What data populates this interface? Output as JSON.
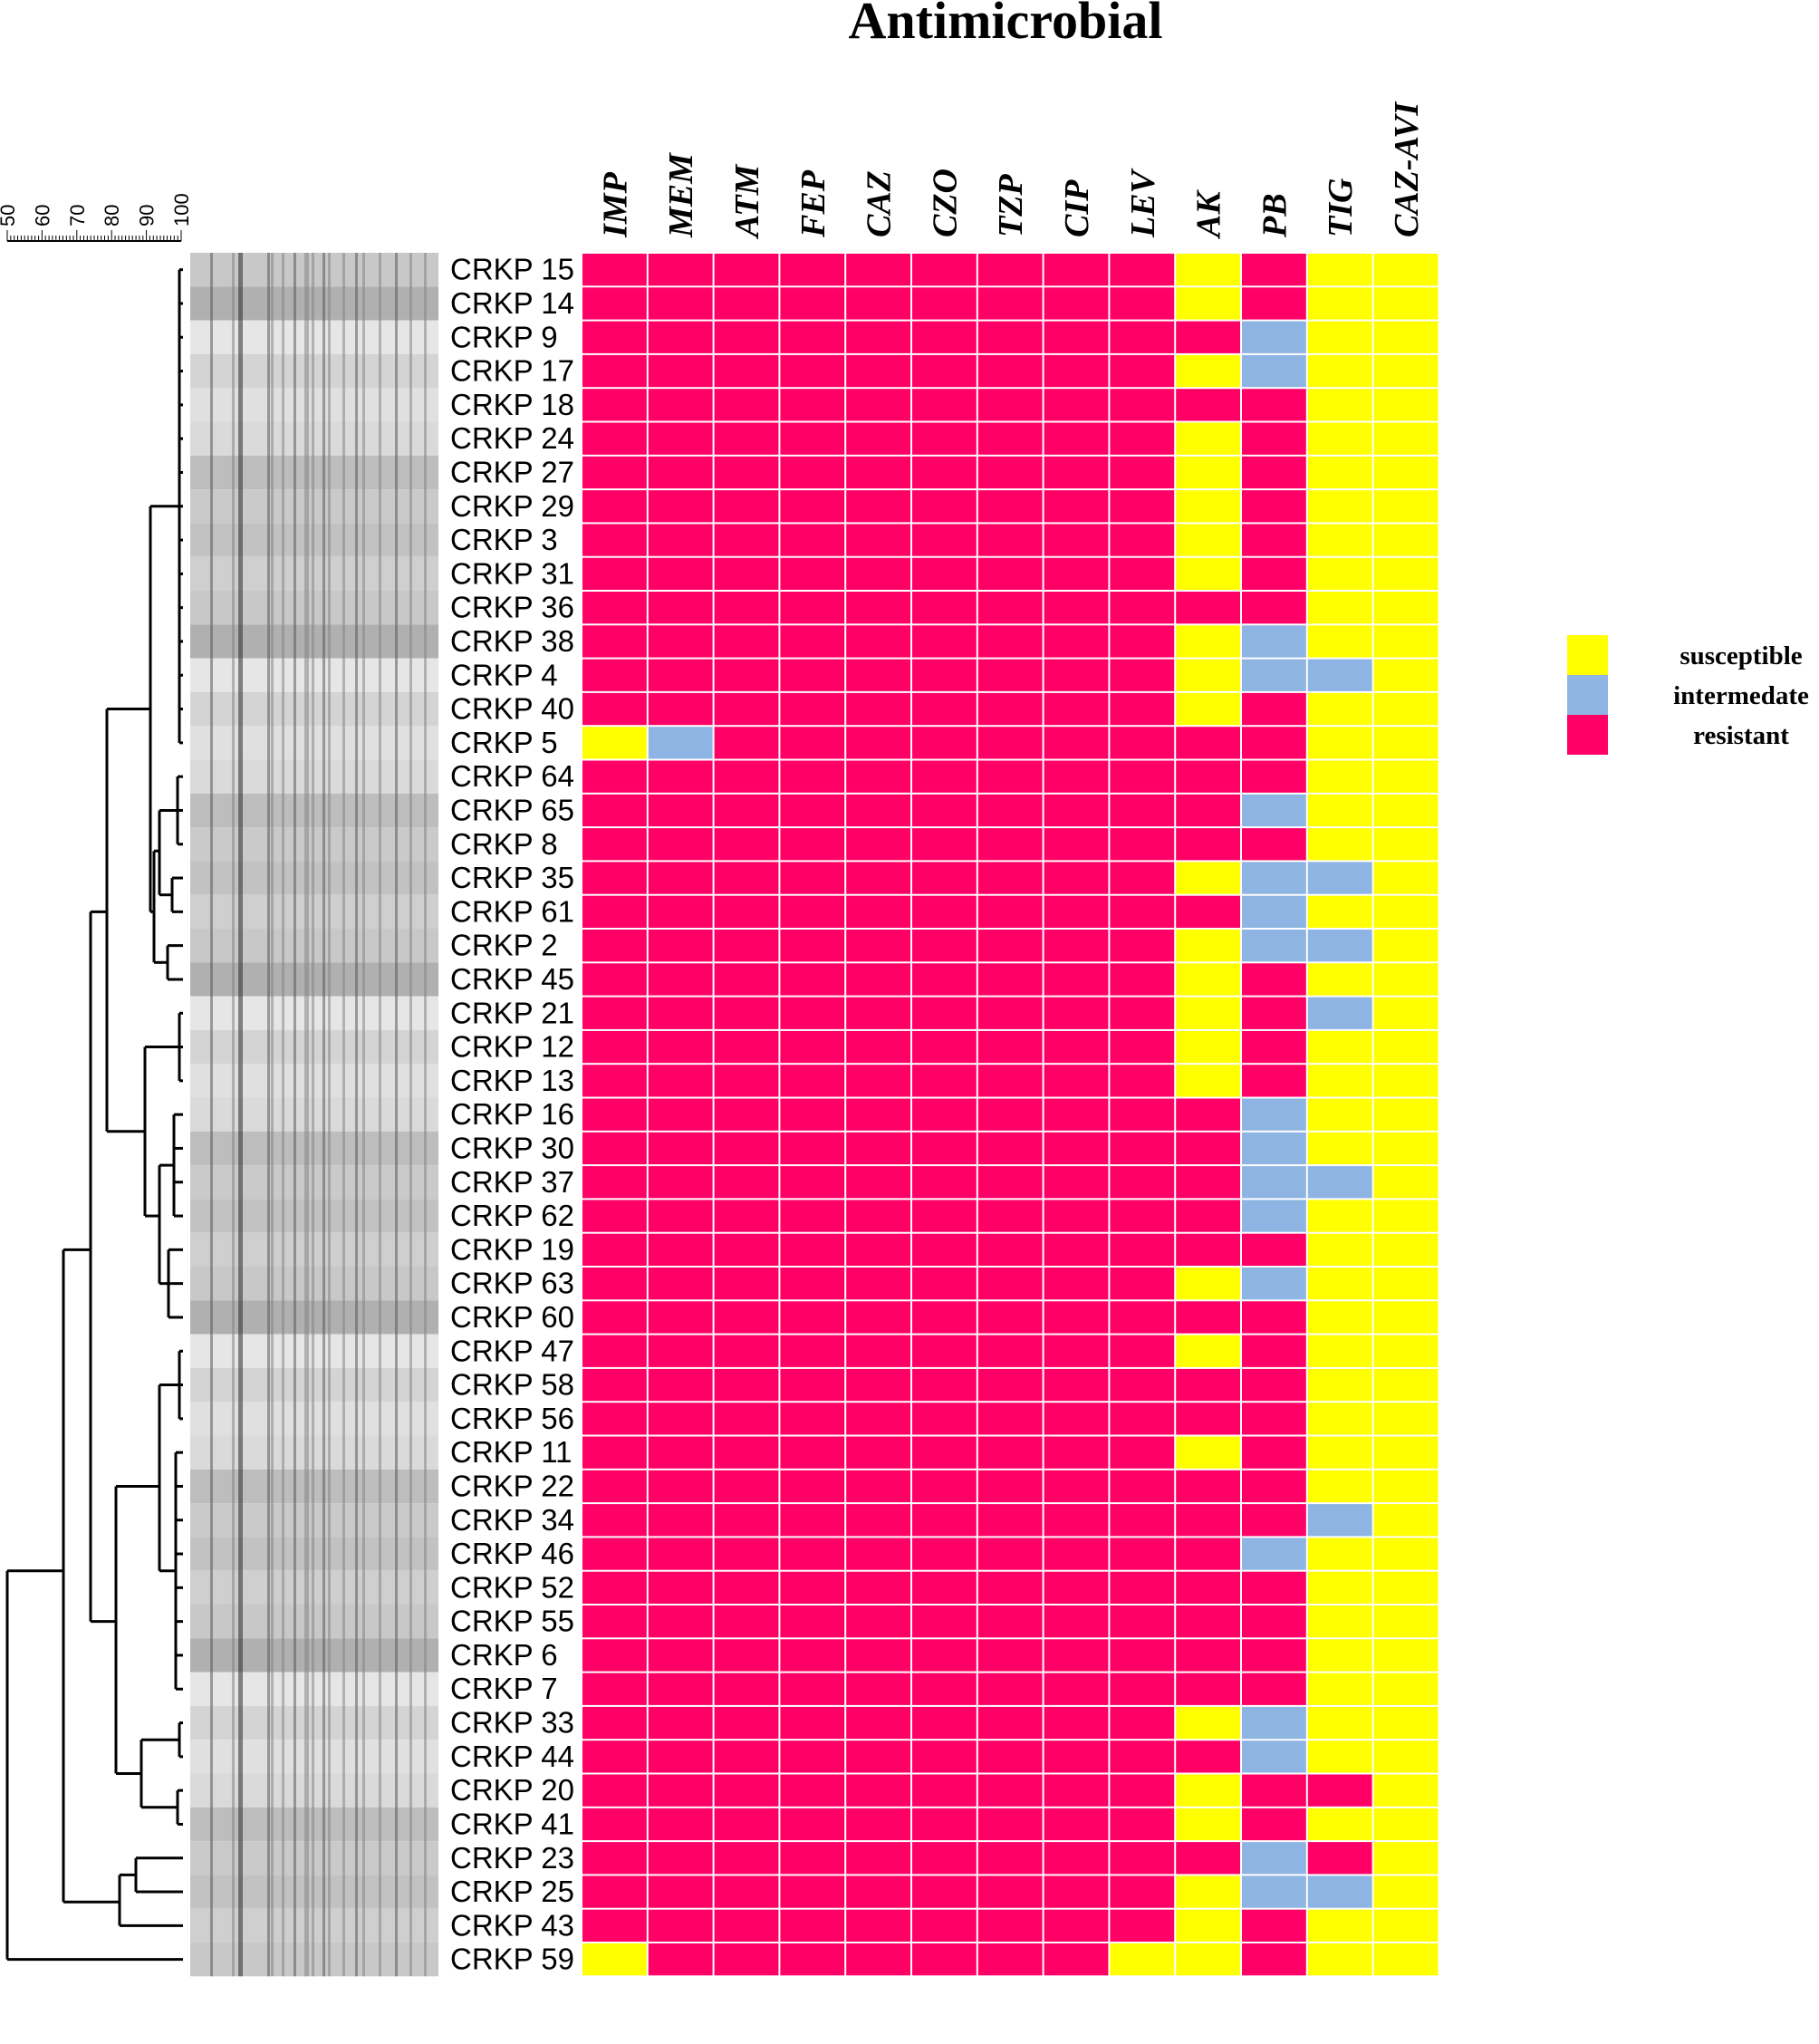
{
  "chart_data": {
    "type": "heatmap",
    "title": "Antimicrobial",
    "antimicrobials": [
      "IMP",
      "MEM",
      "ATM",
      "FEP",
      "CAZ",
      "CZO",
      "TZP",
      "CIP",
      "LEV",
      "AK",
      "PB",
      "TIG",
      "CAZ-AVI"
    ],
    "similarity_scale": {
      "ticks": [
        "50",
        "60",
        "70",
        "80",
        "90",
        "100"
      ]
    },
    "legend": [
      {
        "key": "S",
        "label": "susceptible",
        "color": "#FFFF00"
      },
      {
        "key": "I",
        "label": "intermedate",
        "color": "#8EB4E3"
      },
      {
        "key": "R",
        "label": "resistant",
        "color": "#FF0066"
      }
    ],
    "isolates": [
      {
        "label": "CRKP 15",
        "profile": "RRRRRRRRRSRSS"
      },
      {
        "label": "CRKP 14",
        "profile": "RRRRRRRRRSRSS"
      },
      {
        "label": "CRKP 9",
        "profile": "RRRRRRRRRRISS"
      },
      {
        "label": "CRKP 17",
        "profile": "RRRRRRRRRSISS"
      },
      {
        "label": "CRKP 18",
        "profile": "RRRRRRRRRRRSS"
      },
      {
        "label": "CRKP 24",
        "profile": "RRRRRRRRRSRSS"
      },
      {
        "label": "CRKP 27",
        "profile": "RRRRRRRRRSRSS"
      },
      {
        "label": "CRKP 29",
        "profile": "RRRRRRRRRSRSS"
      },
      {
        "label": "CRKP 3",
        "profile": "RRRRRRRRRSRSS"
      },
      {
        "label": "CRKP 31",
        "profile": "RRRRRRRRRSRSS"
      },
      {
        "label": "CRKP 36",
        "profile": "RRRRRRRRRRRSS"
      },
      {
        "label": "CRKP 38",
        "profile": "RRRRRRRRRSISS"
      },
      {
        "label": "CRKP 4",
        "profile": "RRRRRRRRRSIIS"
      },
      {
        "label": "CRKP 40",
        "profile": "RRRRRRRRRSRSS"
      },
      {
        "label": "CRKP 5",
        "profile": "SIRRRRRRRRRSS"
      },
      {
        "label": "CRKP 64",
        "profile": "RRRRRRRRRRRSS"
      },
      {
        "label": "CRKP 65",
        "profile": "RRRRRRRRRRISS"
      },
      {
        "label": "CRKP 8",
        "profile": "RRRRRRRRRRRSS"
      },
      {
        "label": "CRKP 35",
        "profile": "RRRRRRRRRSIIS"
      },
      {
        "label": "CRKP 61",
        "profile": "RRRRRRRRRRISS"
      },
      {
        "label": "CRKP 2",
        "profile": "RRRRRRRRRSIIS"
      },
      {
        "label": "CRKP 45",
        "profile": "RRRRRRRRRSRSS"
      },
      {
        "label": "CRKP 21",
        "profile": "RRRRRRRRRSRIS"
      },
      {
        "label": "CRKP 12",
        "profile": "RRRRRRRRRSRSS"
      },
      {
        "label": "CRKP 13",
        "profile": "RRRRRRRRRSRSS"
      },
      {
        "label": "CRKP 16",
        "profile": "RRRRRRRRRRISS"
      },
      {
        "label": "CRKP 30",
        "profile": "RRRRRRRRRRISS"
      },
      {
        "label": "CRKP 37",
        "profile": "RRRRRRRRRRIIS"
      },
      {
        "label": "CRKP 62",
        "profile": "RRRRRRRRRRISS"
      },
      {
        "label": "CRKP 19",
        "profile": "RRRRRRRRRRRSS"
      },
      {
        "label": "CRKP 63",
        "profile": "RRRRRRRRRSISS"
      },
      {
        "label": "CRKP 60",
        "profile": "RRRRRRRRRRRSS"
      },
      {
        "label": "CRKP 47",
        "profile": "RRRRRRRRRSRSS"
      },
      {
        "label": "CRKP 58",
        "profile": "RRRRRRRRRRRSS"
      },
      {
        "label": "CRKP 56",
        "profile": "RRRRRRRRRRRSS"
      },
      {
        "label": "CRKP 11",
        "profile": "RRRRRRRRRSRSS"
      },
      {
        "label": "CRKP 22",
        "profile": "RRRRRRRRRRRSS"
      },
      {
        "label": "CRKP 34",
        "profile": "RRRRRRRRRRRIS"
      },
      {
        "label": "CRKP 46",
        "profile": "RRRRRRRRRRISS"
      },
      {
        "label": "CRKP 52",
        "profile": "RRRRRRRRRRRSS"
      },
      {
        "label": "CRKP 55",
        "profile": "RRRRRRRRRRRSS"
      },
      {
        "label": "CRKP 6",
        "profile": "RRRRRRRRRRRSS"
      },
      {
        "label": "CRKP 7",
        "profile": "RRRRRRRRRRRSS"
      },
      {
        "label": "CRKP 33",
        "profile": "RRRRRRRRRSISS"
      },
      {
        "label": "CRKP 44",
        "profile": "RRRRRRRRRRISS"
      },
      {
        "label": "CRKP 20",
        "profile": "RRRRRRRRRSRRS"
      },
      {
        "label": "CRKP 41",
        "profile": "RRRRRRRRRSRSS"
      },
      {
        "label": "CRKP 23",
        "profile": "RRRRRRRRRRIRS"
      },
      {
        "label": "CRKP 25",
        "profile": "RRRRRRRRRSIIS"
      },
      {
        "label": "CRKP 43",
        "profile": "RRRRRRRRRSRSS"
      },
      {
        "label": "CRKP 59",
        "profile": "SRRRRRRRSSRSS"
      }
    ]
  }
}
